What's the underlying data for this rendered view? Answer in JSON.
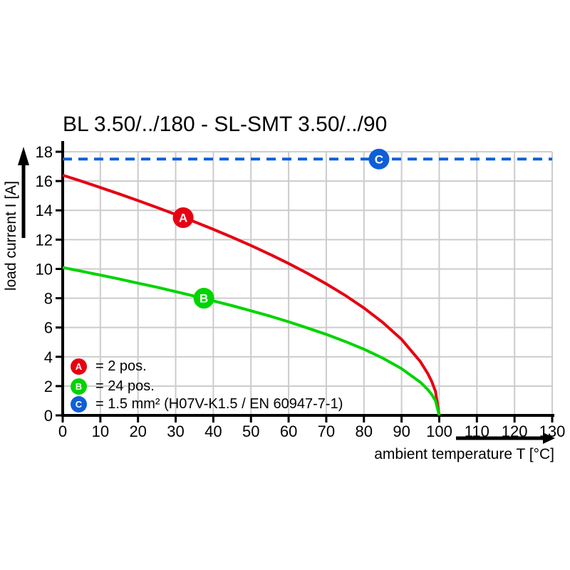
{
  "title": "BL 3.50/../180 - SL-SMT 3.50/../90",
  "chart_data": {
    "type": "line",
    "title": "BL 3.50/../180 - SL-SMT 3.50/../90",
    "xlabel": "ambient temperature T [°C]",
    "ylabel": "load current I [A]",
    "xlim": [
      0,
      130
    ],
    "ylim": [
      0,
      18
    ],
    "x_ticks": [
      0,
      10,
      20,
      30,
      40,
      50,
      60,
      70,
      80,
      90,
      100,
      110,
      120,
      130
    ],
    "y_ticks": [
      0,
      2,
      4,
      6,
      8,
      10,
      12,
      14,
      16,
      18
    ],
    "grid": true,
    "grid_color": "#cccccc",
    "axis_color": "#000000",
    "legend_position": "lower-left",
    "series": [
      {
        "id": "A",
        "legend_label": "= 2 pos.",
        "color": "#e60012",
        "style": "solid",
        "x": [
          0,
          5,
          10,
          15,
          20,
          25,
          30,
          35,
          40,
          45,
          50,
          55,
          60,
          65,
          70,
          75,
          80,
          85,
          90,
          95,
          97,
          98,
          99,
          100
        ],
        "y": [
          16.4,
          15.99,
          15.56,
          15.12,
          14.67,
          14.2,
          13.72,
          13.22,
          12.7,
          12.16,
          11.6,
          11.0,
          10.37,
          9.7,
          8.98,
          8.2,
          7.33,
          6.35,
          5.19,
          3.67,
          2.84,
          2.32,
          1.64,
          0
        ],
        "marker": {
          "letter": "A",
          "x": 32,
          "y": 13.5
        }
      },
      {
        "id": "B",
        "legend_label": "= 24 pos.",
        "color": "#00d400",
        "style": "solid",
        "x": [
          0,
          5,
          10,
          15,
          20,
          25,
          30,
          35,
          40,
          45,
          50,
          55,
          60,
          65,
          70,
          75,
          80,
          85,
          90,
          95,
          97,
          98,
          99,
          100
        ],
        "y": [
          10.1,
          9.84,
          9.58,
          9.31,
          9.03,
          8.75,
          8.45,
          8.14,
          7.82,
          7.49,
          7.14,
          6.78,
          6.39,
          5.97,
          5.53,
          5.05,
          4.52,
          3.91,
          3.19,
          2.26,
          1.75,
          1.43,
          1.01,
          0
        ],
        "marker": {
          "letter": "B",
          "x": 37.5,
          "y": 8.0
        }
      },
      {
        "id": "C",
        "legend_label": "= 1.5 mm² (H07V-K1.5 / EN 60947-7-1)",
        "color": "#0e5fd8",
        "style": "dashed",
        "x": [
          0,
          130
        ],
        "y": [
          17.5,
          17.5
        ],
        "marker": {
          "letter": "C",
          "x": 84,
          "y": 17.5
        }
      }
    ]
  }
}
